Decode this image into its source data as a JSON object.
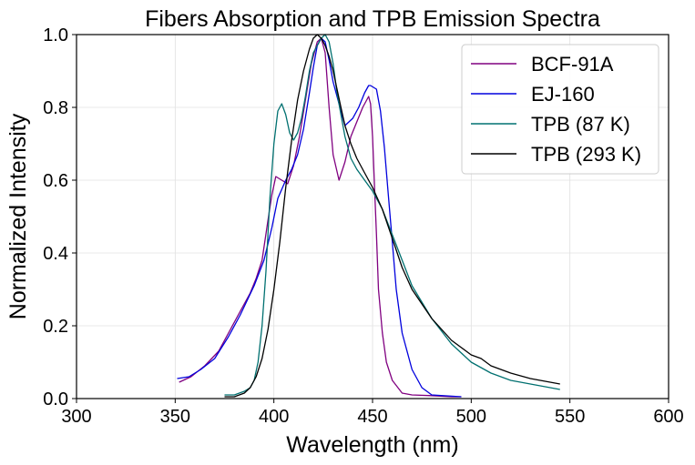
{
  "chart_data": {
    "type": "line",
    "title": "Fibers Absorption and TPB Emission Spectra",
    "xlabel": "Wavelength (nm)",
    "ylabel": "Normalized Intensity",
    "xlim": [
      300,
      600
    ],
    "ylim": [
      0,
      1.0
    ],
    "xticks": [
      300,
      350,
      400,
      450,
      500,
      550,
      600
    ],
    "yticks": [
      0.0,
      0.2,
      0.4,
      0.6,
      0.8,
      1.0
    ],
    "xtick_labels": [
      "300",
      "350",
      "400",
      "450",
      "500",
      "550",
      "600"
    ],
    "ytick_labels": [
      "0.0",
      "0.2",
      "0.4",
      "0.6",
      "0.8",
      "1.0"
    ],
    "grid": true,
    "legend_position": "top-right",
    "series": [
      {
        "name": "BCF-91A",
        "color": "#800080",
        "x": [
          352,
          358,
          365,
          372,
          378,
          383,
          388,
          391,
          394,
          397,
          399,
          401,
          404,
          407,
          410,
          413,
          416,
          419,
          422,
          424,
          426,
          428,
          430,
          433,
          436,
          439,
          442,
          445,
          448,
          449,
          450,
          451,
          452,
          453,
          455,
          457,
          460,
          465,
          470,
          480,
          490,
          495
        ],
        "y": [
          0.045,
          0.06,
          0.09,
          0.13,
          0.19,
          0.24,
          0.29,
          0.33,
          0.38,
          0.49,
          0.56,
          0.61,
          0.6,
          0.59,
          0.64,
          0.72,
          0.82,
          0.92,
          0.98,
          0.99,
          0.95,
          0.8,
          0.67,
          0.6,
          0.65,
          0.72,
          0.76,
          0.8,
          0.83,
          0.81,
          0.72,
          0.58,
          0.45,
          0.3,
          0.18,
          0.1,
          0.05,
          0.015,
          0.01,
          0.008,
          0.005,
          0.005
        ]
      },
      {
        "name": "EJ-160",
        "color": "#0000dd",
        "x": [
          351,
          357,
          363,
          370,
          377,
          383,
          390,
          395,
          399,
          402,
          406,
          409,
          412,
          415,
          418,
          420,
          422,
          424,
          426,
          428,
          430,
          432,
          434,
          436,
          438,
          440,
          443,
          446,
          448,
          449,
          452,
          454,
          456,
          458,
          460,
          462,
          465,
          470,
          475,
          480,
          495
        ],
        "y": [
          0.055,
          0.06,
          0.08,
          0.11,
          0.17,
          0.23,
          0.31,
          0.38,
          0.47,
          0.55,
          0.6,
          0.63,
          0.67,
          0.74,
          0.84,
          0.91,
          0.97,
          0.99,
          0.98,
          0.93,
          0.87,
          0.83,
          0.79,
          0.75,
          0.76,
          0.77,
          0.8,
          0.84,
          0.86,
          0.86,
          0.85,
          0.79,
          0.69,
          0.56,
          0.43,
          0.3,
          0.18,
          0.08,
          0.03,
          0.01,
          0.005
        ]
      },
      {
        "name": "TPB (87 K)",
        "color": "#007070",
        "x": [
          375,
          380,
          385,
          388,
          390,
          392,
          394,
          396,
          398,
          400,
          402,
          404,
          406,
          408,
          410,
          412,
          414,
          416,
          418,
          420,
          422,
          424,
          426,
          428,
          430,
          432,
          434,
          436,
          439,
          442,
          446,
          450,
          455,
          460,
          465,
          470,
          480,
          490,
          500,
          510,
          520,
          530,
          540,
          545
        ],
        "y": [
          0.01,
          0.01,
          0.02,
          0.03,
          0.05,
          0.1,
          0.2,
          0.35,
          0.55,
          0.7,
          0.79,
          0.81,
          0.78,
          0.73,
          0.71,
          0.73,
          0.77,
          0.83,
          0.9,
          0.95,
          0.97,
          0.99,
          1.0,
          0.98,
          0.92,
          0.84,
          0.78,
          0.72,
          0.66,
          0.63,
          0.6,
          0.57,
          0.52,
          0.45,
          0.38,
          0.31,
          0.22,
          0.15,
          0.1,
          0.07,
          0.05,
          0.04,
          0.03,
          0.025
        ]
      },
      {
        "name": "TPB (293 K)",
        "color": "#000000",
        "x": [
          375,
          380,
          385,
          388,
          391,
          394,
          397,
          400,
          403,
          406,
          409,
          412,
          415,
          418,
          420,
          422,
          424,
          426,
          428,
          430,
          432,
          434,
          436,
          439,
          442,
          446,
          450,
          455,
          460,
          465,
          470,
          480,
          490,
          500,
          505,
          510,
          520,
          530,
          540,
          545
        ],
        "y": [
          0.005,
          0.005,
          0.015,
          0.03,
          0.06,
          0.11,
          0.19,
          0.3,
          0.43,
          0.58,
          0.71,
          0.82,
          0.9,
          0.96,
          0.99,
          1.0,
          0.99,
          0.97,
          0.94,
          0.9,
          0.85,
          0.8,
          0.75,
          0.7,
          0.66,
          0.62,
          0.58,
          0.52,
          0.44,
          0.36,
          0.3,
          0.22,
          0.16,
          0.12,
          0.11,
          0.09,
          0.07,
          0.055,
          0.045,
          0.04
        ]
      }
    ]
  }
}
